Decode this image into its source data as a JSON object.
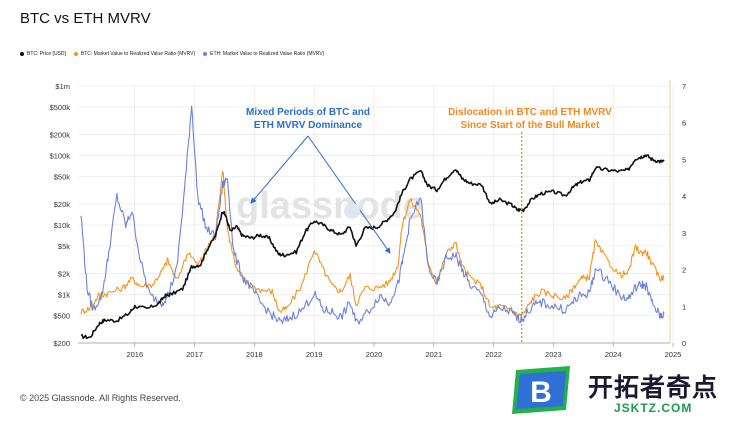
{
  "title": "BTC vs ETH MVRV",
  "copyright": "© 2025 Glassnode. All Rights Reserved.",
  "watermark": "glassnode",
  "brand": {
    "cn": "开拓者奇点",
    "en": "JSKTZ.COM",
    "logo_letter": "B"
  },
  "colors": {
    "btc_price": "#111111",
    "btc_mvrv": "#f5941e",
    "eth_mvrv": "#6b82e0",
    "annotation_blue": "#2a6fcd",
    "annotation_orange": "#f08a24",
    "grid": "#e6e6e6"
  },
  "chart_data": {
    "type": "line",
    "title": "BTC vs ETH MVRV",
    "legend": [
      "BTC: Price [USD]",
      "BTC: Market Value to Realized Value Ratio (MVRV)",
      "ETH: Market Value to Realized Value Ratio (MVRV)"
    ],
    "legend_position": "top-left",
    "x_ticks": [
      "2016",
      "2017",
      "2018",
      "2019",
      "2020",
      "2021",
      "2022",
      "2023",
      "2024",
      "2025"
    ],
    "x_range": [
      2015.55,
      2025.45
    ],
    "y_left": {
      "scale": "log",
      "ticks": [
        "$200",
        "$500",
        "$1k",
        "$2k",
        "$5k",
        "$10k",
        "$20k",
        "$50k",
        "$100k",
        "$200k",
        "$500k",
        "$1m"
      ],
      "tick_values": [
        200,
        500,
        1000,
        2000,
        5000,
        10000,
        20000,
        50000,
        100000,
        200000,
        500000,
        1000000
      ],
      "range": [
        200,
        1000000
      ]
    },
    "y_right": {
      "scale": "linear",
      "ticks": [
        "0",
        "1",
        "2",
        "3",
        "4",
        "5",
        "6",
        "7"
      ],
      "range": [
        0,
        7
      ]
    },
    "grid": true,
    "series": [
      {
        "name": "BTC: Price [USD]",
        "axis": "left",
        "color": "#111111",
        "points": [
          [
            2015.6,
            250
          ],
          [
            2015.75,
            240
          ],
          [
            2015.9,
            380
          ],
          [
            2016.0,
            430
          ],
          [
            2016.2,
            420
          ],
          [
            2016.4,
            530
          ],
          [
            2016.5,
            680
          ],
          [
            2016.7,
            620
          ],
          [
            2016.9,
            740
          ],
          [
            2017.0,
            950
          ],
          [
            2017.1,
            1000
          ],
          [
            2017.3,
            1200
          ],
          [
            2017.45,
            2500
          ],
          [
            2017.6,
            2700
          ],
          [
            2017.7,
            4300
          ],
          [
            2017.85,
            7000
          ],
          [
            2017.97,
            16000
          ],
          [
            2018.02,
            13500
          ],
          [
            2018.1,
            8000
          ],
          [
            2018.2,
            9500
          ],
          [
            2018.3,
            7000
          ],
          [
            2018.45,
            6500
          ],
          [
            2018.6,
            7200
          ],
          [
            2018.75,
            6400
          ],
          [
            2018.9,
            3800
          ],
          [
            2019.0,
            3700
          ],
          [
            2019.2,
            4100
          ],
          [
            2019.35,
            8000
          ],
          [
            2019.5,
            11500
          ],
          [
            2019.65,
            10000
          ],
          [
            2019.8,
            8200
          ],
          [
            2019.95,
            7200
          ],
          [
            2020.1,
            9500
          ],
          [
            2020.2,
            5000
          ],
          [
            2020.35,
            9000
          ],
          [
            2020.55,
            9300
          ],
          [
            2020.7,
            11500
          ],
          [
            2020.85,
            15500
          ],
          [
            2020.97,
            29000
          ],
          [
            2021.1,
            45000
          ],
          [
            2021.28,
            60000
          ],
          [
            2021.4,
            37000
          ],
          [
            2021.55,
            32000
          ],
          [
            2021.7,
            47000
          ],
          [
            2021.86,
            65000
          ],
          [
            2021.97,
            47000
          ],
          [
            2022.1,
            40000
          ],
          [
            2022.3,
            38000
          ],
          [
            2022.45,
            20000
          ],
          [
            2022.6,
            23000
          ],
          [
            2022.8,
            19500
          ],
          [
            2022.9,
            16500
          ],
          [
            2023.0,
            16600
          ],
          [
            2023.15,
            24000
          ],
          [
            2023.3,
            28500
          ],
          [
            2023.5,
            30000
          ],
          [
            2023.7,
            26500
          ],
          [
            2023.85,
            36000
          ],
          [
            2023.97,
            42000
          ],
          [
            2024.1,
            44000
          ],
          [
            2024.2,
            66000
          ],
          [
            2024.4,
            62000
          ],
          [
            2024.6,
            59000
          ],
          [
            2024.75,
            62000
          ],
          [
            2024.87,
            90000
          ],
          [
            2024.97,
            96000
          ],
          [
            2025.05,
            102000
          ],
          [
            2025.15,
            88000
          ],
          [
            2025.28,
            82000
          ],
          [
            2025.35,
            83000
          ]
        ]
      },
      {
        "name": "BTC: Market Value to Realized Value Ratio (MVRV)",
        "axis": "right",
        "color": "#f5941e",
        "points": [
          [
            2015.6,
            0.85
          ],
          [
            2015.75,
            0.95
          ],
          [
            2015.9,
            1.3
          ],
          [
            2016.05,
            1.35
          ],
          [
            2016.3,
            1.5
          ],
          [
            2016.45,
            1.75
          ],
          [
            2016.6,
            1.55
          ],
          [
            2016.8,
            1.6
          ],
          [
            2016.95,
            1.95
          ],
          [
            2017.05,
            2.25
          ],
          [
            2017.2,
            1.7
          ],
          [
            2017.4,
            2.5
          ],
          [
            2017.55,
            2.1
          ],
          [
            2017.7,
            2.55
          ],
          [
            2017.85,
            3.0
          ],
          [
            2017.97,
            4.75
          ],
          [
            2018.05,
            3.1
          ],
          [
            2018.2,
            2.0
          ],
          [
            2018.4,
            1.6
          ],
          [
            2018.6,
            1.45
          ],
          [
            2018.8,
            1.4
          ],
          [
            2018.92,
            0.85
          ],
          [
            2019.05,
            0.95
          ],
          [
            2019.3,
            1.6
          ],
          [
            2019.5,
            2.55
          ],
          [
            2019.65,
            2.0
          ],
          [
            2019.8,
            1.55
          ],
          [
            2019.95,
            1.4
          ],
          [
            2020.1,
            1.85
          ],
          [
            2020.2,
            1.05
          ],
          [
            2020.35,
            1.5
          ],
          [
            2020.55,
            1.5
          ],
          [
            2020.75,
            1.65
          ],
          [
            2020.9,
            2.1
          ],
          [
            2020.97,
            3.2
          ],
          [
            2021.1,
            3.9
          ],
          [
            2021.28,
            3.5
          ],
          [
            2021.4,
            2.25
          ],
          [
            2021.55,
            1.6
          ],
          [
            2021.7,
            2.4
          ],
          [
            2021.86,
            2.75
          ],
          [
            2021.97,
            2.1
          ],
          [
            2022.1,
            1.8
          ],
          [
            2022.3,
            1.55
          ],
          [
            2022.45,
            0.95
          ],
          [
            2022.6,
            1.0
          ],
          [
            2022.8,
            0.9
          ],
          [
            2022.9,
            0.75
          ],
          [
            2023.0,
            0.8
          ],
          [
            2023.15,
            1.2
          ],
          [
            2023.3,
            1.4
          ],
          [
            2023.5,
            1.3
          ],
          [
            2023.7,
            1.2
          ],
          [
            2023.85,
            1.55
          ],
          [
            2023.97,
            1.75
          ],
          [
            2024.1,
            1.8
          ],
          [
            2024.2,
            2.75
          ],
          [
            2024.4,
            2.25
          ],
          [
            2024.6,
            1.85
          ],
          [
            2024.75,
            1.9
          ],
          [
            2024.87,
            2.6
          ],
          [
            2024.97,
            2.45
          ],
          [
            2025.05,
            2.5
          ],
          [
            2025.15,
            2.15
          ],
          [
            2025.28,
            1.75
          ],
          [
            2025.35,
            1.8
          ]
        ]
      },
      {
        "name": "ETH: Market Value to Realized Value Ratio (MVRV)",
        "axis": "right",
        "color": "#6b82e0",
        "points": [
          [
            2015.6,
            3.5
          ],
          [
            2015.7,
            1.5
          ],
          [
            2015.8,
            0.9
          ],
          [
            2015.95,
            1.3
          ],
          [
            2016.05,
            2.3
          ],
          [
            2016.2,
            4.0
          ],
          [
            2016.35,
            3.2
          ],
          [
            2016.45,
            3.6
          ],
          [
            2016.6,
            2.2
          ],
          [
            2016.75,
            1.3
          ],
          [
            2016.95,
            1.1
          ],
          [
            2017.05,
            1.3
          ],
          [
            2017.2,
            2.0
          ],
          [
            2017.35,
            4.5
          ],
          [
            2017.45,
            6.5
          ],
          [
            2017.55,
            4.0
          ],
          [
            2017.7,
            3.1
          ],
          [
            2017.85,
            2.9
          ],
          [
            2017.97,
            4.3
          ],
          [
            2018.05,
            4.5
          ],
          [
            2018.15,
            2.5
          ],
          [
            2018.3,
            1.8
          ],
          [
            2018.45,
            1.5
          ],
          [
            2018.6,
            1.1
          ],
          [
            2018.8,
            0.75
          ],
          [
            2018.95,
            0.55
          ],
          [
            2019.1,
            0.7
          ],
          [
            2019.3,
            0.9
          ],
          [
            2019.5,
            1.35
          ],
          [
            2019.65,
            0.9
          ],
          [
            2019.8,
            0.85
          ],
          [
            2019.95,
            0.7
          ],
          [
            2020.1,
            1.1
          ],
          [
            2020.2,
            0.55
          ],
          [
            2020.4,
            0.85
          ],
          [
            2020.6,
            1.3
          ],
          [
            2020.75,
            1.1
          ],
          [
            2020.9,
            1.6
          ],
          [
            2021.0,
            2.4
          ],
          [
            2021.1,
            3.3
          ],
          [
            2021.28,
            4.0
          ],
          [
            2021.4,
            2.1
          ],
          [
            2021.55,
            1.6
          ],
          [
            2021.7,
            2.3
          ],
          [
            2021.86,
            2.4
          ],
          [
            2021.97,
            2.0
          ],
          [
            2022.1,
            1.6
          ],
          [
            2022.3,
            1.3
          ],
          [
            2022.45,
            0.7
          ],
          [
            2022.6,
            0.95
          ],
          [
            2022.8,
            0.85
          ],
          [
            2022.9,
            0.65
          ],
          [
            2023.0,
            0.7
          ],
          [
            2023.15,
            1.0
          ],
          [
            2023.3,
            1.1
          ],
          [
            2023.5,
            1.0
          ],
          [
            2023.7,
            0.9
          ],
          [
            2023.85,
            1.15
          ],
          [
            2023.97,
            1.3
          ],
          [
            2024.1,
            1.35
          ],
          [
            2024.2,
            2.0
          ],
          [
            2024.4,
            1.75
          ],
          [
            2024.6,
            1.3
          ],
          [
            2024.75,
            1.2
          ],
          [
            2024.87,
            1.5
          ],
          [
            2024.97,
            1.6
          ],
          [
            2025.05,
            1.55
          ],
          [
            2025.15,
            1.1
          ],
          [
            2025.28,
            0.75
          ],
          [
            2025.35,
            0.8
          ]
        ]
      }
    ],
    "annotations": [
      {
        "text": [
          "Mixed Periods of BTC and",
          "ETH MVRV Dominance"
        ],
        "color": "blue"
      },
      {
        "text": [
          "Dislocation in BTC and ETH MVRV",
          "Since Start of the Bull Market"
        ],
        "color": "orange",
        "marker_x": 2022.97
      }
    ]
  }
}
